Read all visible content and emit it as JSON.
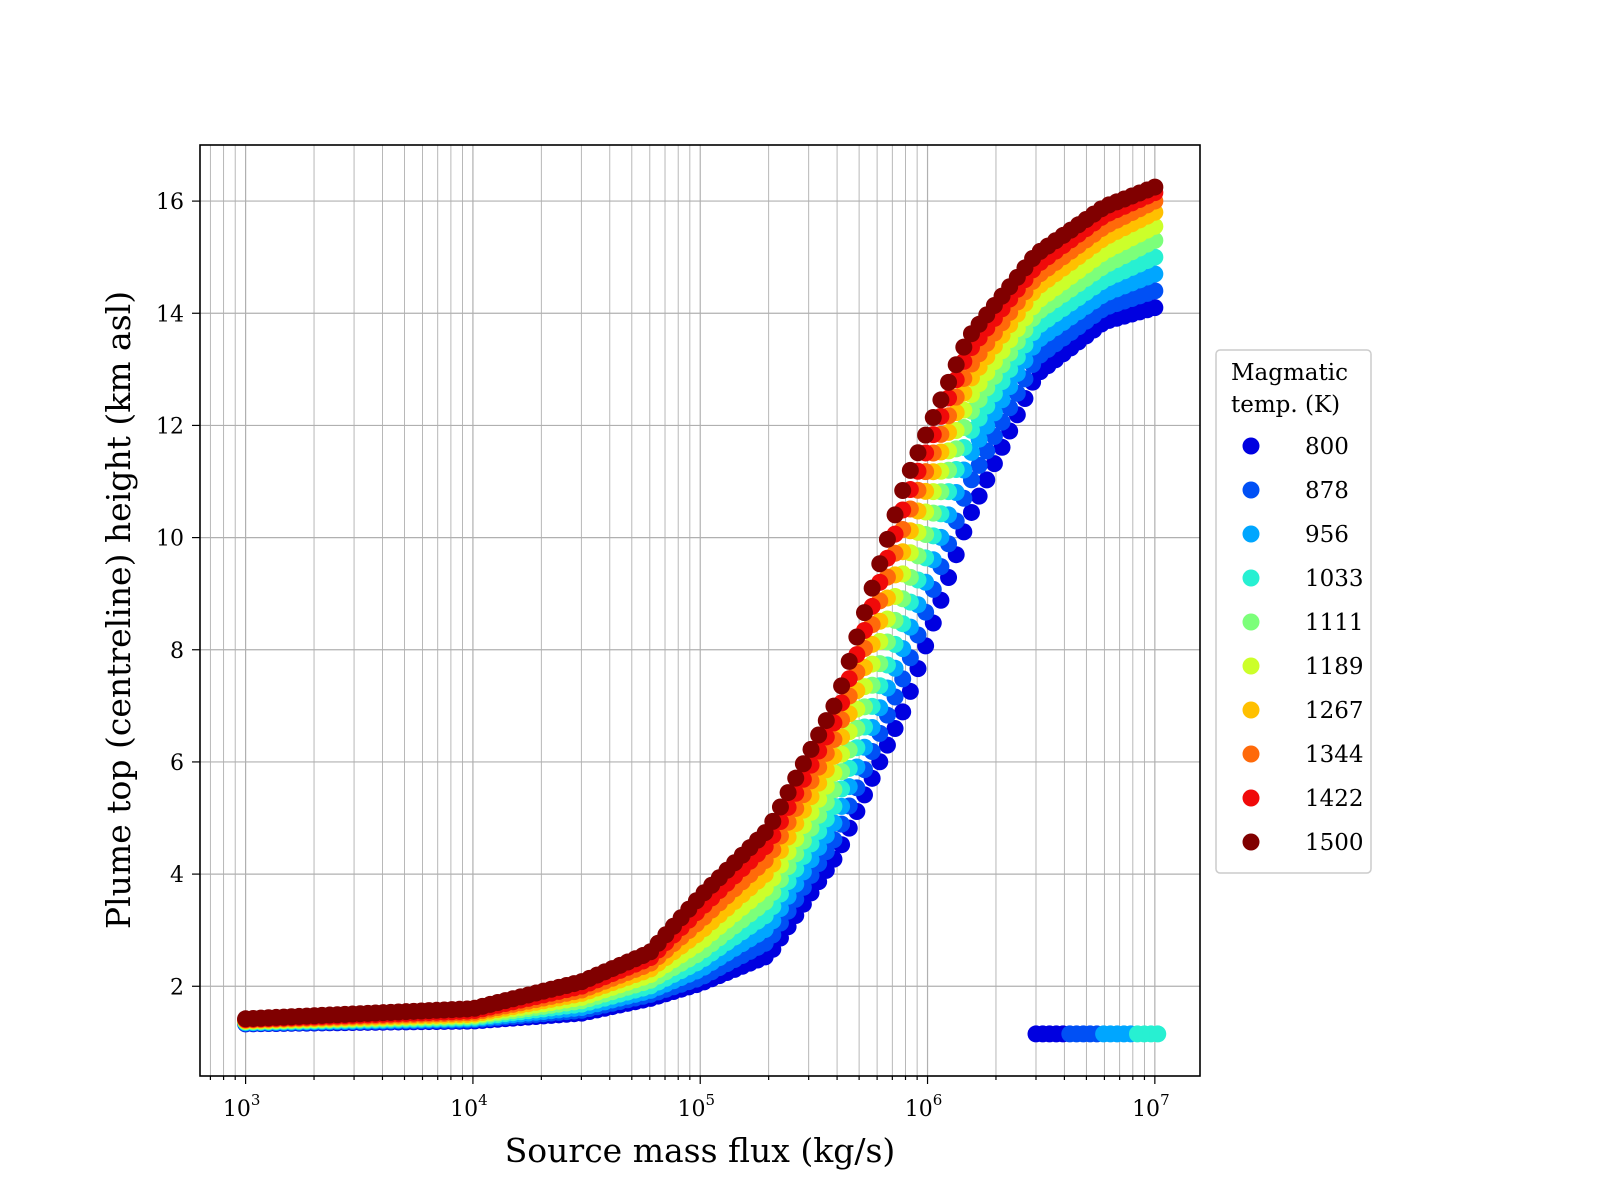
{
  "chart_data": {
    "type": "scatter",
    "title": "",
    "xlabel": "Source mass flux (kg/s)",
    "ylabel": "Plume top (centreline) height (km asl)",
    "xscale": "log",
    "xlim": [
      630,
      15800000
    ],
    "ylim": [
      0.4,
      17.0
    ],
    "x_ticks": [
      {
        "base": "10",
        "exp": "3",
        "value": 1000
      },
      {
        "base": "10",
        "exp": "4",
        "value": 10000
      },
      {
        "base": "10",
        "exp": "5",
        "value": 100000
      },
      {
        "base": "10",
        "exp": "6",
        "value": 1000000
      },
      {
        "base": "10",
        "exp": "7",
        "value": 10000000
      }
    ],
    "y_ticks": [
      "2",
      "4",
      "6",
      "8",
      "10",
      "12",
      "14",
      "16"
    ],
    "grid": "major-and-minor",
    "legend": {
      "title_line1": "Magmatic",
      "title_line2": "temp. (K)",
      "placement": "outside-right"
    },
    "curve_x": [
      1000,
      10000,
      30000,
      60000,
      100000,
      200000,
      400000,
      800000,
      1500000,
      3000000,
      6000000,
      10000000
    ],
    "series": [
      {
        "name": "800",
        "color": "#0000e0",
        "y": [
          1.33,
          1.38,
          1.52,
          1.78,
          2.05,
          2.55,
          4.35,
          7.0,
          10.3,
          12.9,
          13.85,
          14.1
        ]
      },
      {
        "name": "878",
        "color": "#0050f5",
        "y": [
          1.34,
          1.4,
          1.57,
          1.85,
          2.15,
          2.8,
          4.7,
          7.6,
          10.9,
          13.2,
          14.1,
          14.4
        ]
      },
      {
        "name": "956",
        "color": "#00a6ff",
        "y": [
          1.35,
          1.42,
          1.62,
          1.92,
          2.3,
          3.05,
          5.0,
          8.15,
          11.4,
          13.5,
          14.35,
          14.7
        ]
      },
      {
        "name": "1033",
        "color": "#27f0d2",
        "y": [
          1.36,
          1.44,
          1.68,
          2.0,
          2.45,
          3.3,
          5.3,
          8.6,
          11.8,
          13.75,
          14.6,
          15.0
        ]
      },
      {
        "name": "1111",
        "color": "#7cff7a",
        "y": [
          1.37,
          1.46,
          1.74,
          2.1,
          2.6,
          3.55,
          5.6,
          9.05,
          12.15,
          14.0,
          14.85,
          15.3
        ]
      },
      {
        "name": "1189",
        "color": "#ccff2a",
        "y": [
          1.38,
          1.48,
          1.8,
          2.2,
          2.78,
          3.8,
          5.9,
          9.5,
          12.45,
          14.2,
          15.1,
          15.55
        ]
      },
      {
        "name": "1267",
        "color": "#ffc000",
        "y": [
          1.39,
          1.5,
          1.87,
          2.3,
          2.97,
          4.05,
          6.2,
          9.9,
          12.75,
          14.45,
          15.35,
          15.8
        ]
      },
      {
        "name": "1344",
        "color": "#ff6a0a",
        "y": [
          1.4,
          1.53,
          1.93,
          2.4,
          3.17,
          4.3,
          6.5,
          10.3,
          13.0,
          14.65,
          15.55,
          16.0
        ]
      },
      {
        "name": "1422",
        "color": "#f00a0a",
        "y": [
          1.41,
          1.56,
          2.0,
          2.5,
          3.38,
          4.55,
          6.8,
          10.65,
          13.3,
          14.85,
          15.75,
          16.15
        ]
      },
      {
        "name": "1500",
        "color": "#800000",
        "y": [
          1.42,
          1.6,
          2.08,
          2.6,
          3.6,
          4.8,
          7.1,
          11.0,
          13.55,
          15.05,
          15.9,
          16.25
        ]
      }
    ],
    "low_cluster": {
      "x_range": [
        3000000,
        10300000
      ],
      "y": 1.15,
      "colors": [
        "#0000e0",
        "#0000e0",
        "#0000e0",
        "#0000e0",
        "#0000e0",
        "#0050f5",
        "#0050f5",
        "#0050f5",
        "#0050f5",
        "#0050f5",
        "#00a6ff",
        "#00a6ff",
        "#00a6ff",
        "#00a6ff",
        "#00a6ff",
        "#27f0d2",
        "#27f0d2",
        "#27f0d2",
        "#27f0d2"
      ]
    }
  }
}
